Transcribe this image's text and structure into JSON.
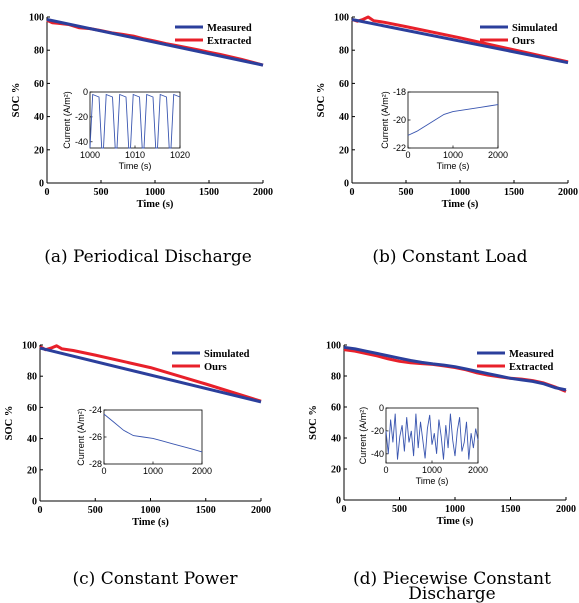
{
  "colors": {
    "blue": "#2b3f9c",
    "red": "#e8202a",
    "inset_line": "#3a56b0"
  },
  "chart_data": [
    {
      "type": "line",
      "caption": "(a) Periodical Discharge",
      "xlabel": "Time (s)",
      "ylabel": "SOC %",
      "xlim": [
        0,
        2000
      ],
      "ylim": [
        0,
        100
      ],
      "xticks": [
        0,
        500,
        1000,
        1500,
        2000
      ],
      "yticks": [
        0,
        20,
        40,
        60,
        80,
        100
      ],
      "legend_position": "top-right",
      "series": [
        {
          "name": "Measured",
          "color": "blue",
          "x": [
            0,
            2000
          ],
          "y": [
            98.5,
            71
          ]
        },
        {
          "name": "Extracted",
          "color": "red",
          "x": [
            0,
            50,
            100,
            200,
            300,
            400,
            500,
            600,
            700,
            800,
            900,
            1000,
            1100,
            1200,
            1300,
            1400,
            1500,
            1600,
            1700,
            1800,
            1900,
            2000
          ],
          "y": [
            98,
            96.5,
            96.2,
            95.5,
            93.5,
            93,
            91.8,
            90.5,
            89.5,
            88.5,
            86.8,
            85.5,
            84,
            82.8,
            81.5,
            80.2,
            78.8,
            77.5,
            76,
            74.5,
            72.8,
            71
          ]
        }
      ],
      "inset": {
        "xlabel": "Time (s)",
        "ylabel": "Current (A/m²)",
        "xlim": [
          1000,
          1020
        ],
        "ylim": [
          -45,
          0
        ],
        "xticks": [
          1000,
          1010,
          1020
        ],
        "yticks": [
          -40,
          -20,
          0
        ],
        "x": [
          1000,
          1000.6,
          1002,
          1002.6,
          1003,
          1003.6,
          1005,
          1005.6,
          1006,
          1006.6,
          1008,
          1008.6,
          1009,
          1009.6,
          1011,
          1011.6,
          1012,
          1012.6,
          1014,
          1014.6,
          1015,
          1015.6,
          1017,
          1017.6,
          1018,
          1018.6,
          1020
        ],
        "y": [
          -45,
          -2,
          -4,
          -45,
          -45,
          -2,
          -4,
          -45,
          -45,
          -2,
          -4,
          -45,
          -45,
          -2,
          -4,
          -45,
          -45,
          -2,
          -4,
          -45,
          -45,
          -2,
          -4,
          -45,
          -45,
          -2,
          -4
        ]
      }
    },
    {
      "type": "line",
      "caption": "(b) Constant Load",
      "xlabel": "Time (s)",
      "ylabel": "SOC %",
      "xlim": [
        0,
        2000
      ],
      "ylim": [
        0,
        100
      ],
      "xticks": [
        0,
        500,
        1000,
        1500,
        2000
      ],
      "yticks": [
        0,
        20,
        40,
        60,
        80,
        100
      ],
      "legend_position": "top-right",
      "series": [
        {
          "name": "Simulated",
          "color": "blue",
          "x": [
            0,
            2000
          ],
          "y": [
            98.5,
            72.5
          ]
        },
        {
          "name": "Ours",
          "color": "red",
          "x": [
            0,
            50,
            100,
            150,
            200,
            300,
            500,
            1000,
            1500,
            2000
          ],
          "y": [
            98.5,
            97.5,
            98.5,
            100,
            97.8,
            96.8,
            94.2,
            87.5,
            80.2,
            73
          ]
        }
      ],
      "inset": {
        "xlabel": "Time (s)",
        "ylabel": "Current (A/m²)",
        "xlim": [
          0,
          2000
        ],
        "ylim": [
          -22,
          -18
        ],
        "xticks": [
          0,
          1000,
          2000
        ],
        "yticks": [
          -22,
          -20,
          -18
        ],
        "x": [
          0,
          200,
          400,
          600,
          800,
          1000,
          1200,
          1400,
          1600,
          1800,
          2000
        ],
        "y": [
          -21.1,
          -20.8,
          -20.4,
          -20,
          -19.6,
          -19.4,
          -19.3,
          -19.2,
          -19.1,
          -19,
          -18.9
        ]
      }
    },
    {
      "type": "line",
      "caption": "(c) Constant Power",
      "xlabel": "Time (s)",
      "ylabel": "SOC %",
      "xlim": [
        0,
        2000
      ],
      "ylim": [
        0,
        100
      ],
      "xticks": [
        0,
        500,
        1000,
        1500,
        2000
      ],
      "yticks": [
        0,
        20,
        40,
        60,
        80,
        100
      ],
      "legend_position": "top-right",
      "series": [
        {
          "name": "Simulated",
          "color": "blue",
          "x": [
            0,
            2000
          ],
          "y": [
            98,
            63.5
          ]
        },
        {
          "name": "Ours",
          "color": "red",
          "x": [
            0,
            50,
            100,
            150,
            200,
            300,
            500,
            1000,
            1500,
            2000
          ],
          "y": [
            99,
            97,
            98,
            99.5,
            97.5,
            96.5,
            93.5,
            85.5,
            75,
            64
          ]
        }
      ],
      "inset": {
        "xlabel": "",
        "ylabel": "Current (A/m²)",
        "xlim": [
          0,
          2000
        ],
        "ylim": [
          -28,
          -24
        ],
        "xticks": [
          0,
          1000,
          2000
        ],
        "yticks": [
          -28,
          -26,
          -24
        ],
        "x": [
          0,
          200,
          400,
          600,
          800,
          1000,
          1200,
          1400,
          1600,
          1800,
          2000
        ],
        "y": [
          -24.3,
          -24.9,
          -25.5,
          -25.9,
          -26,
          -26.1,
          -26.3,
          -26.5,
          -26.7,
          -26.9,
          -27.1
        ]
      }
    },
    {
      "type": "line",
      "caption": "(d) Piecewise Constant Discharge",
      "caption_lines": [
        "(d) Piecewise Constant",
        "Discharge"
      ],
      "xlabel": "Time (s)",
      "ylabel": "SOC %",
      "xlim": [
        0,
        2000
      ],
      "ylim": [
        0,
        100
      ],
      "xticks": [
        0,
        500,
        1000,
        1500,
        2000
      ],
      "yticks": [
        0,
        20,
        40,
        60,
        80,
        100
      ],
      "legend_position": "top-right",
      "series": [
        {
          "name": "Measured",
          "color": "blue",
          "x": [
            0,
            100,
            200,
            300,
            400,
            500,
            600,
            700,
            800,
            900,
            1000,
            1100,
            1200,
            1300,
            1400,
            1500,
            1600,
            1700,
            1800,
            1900,
            2000
          ],
          "y": [
            98.5,
            97.5,
            96,
            94.5,
            93,
            91.5,
            90,
            88.8,
            87.8,
            87,
            86,
            84.5,
            83,
            81.5,
            80,
            78.5,
            77.5,
            76.5,
            75,
            72.5,
            71
          ]
        },
        {
          "name": "Extracted",
          "color": "red",
          "x": [
            0,
            100,
            200,
            300,
            400,
            500,
            600,
            700,
            800,
            900,
            1000,
            1100,
            1200,
            1300,
            1400,
            1500,
            1600,
            1700,
            1800,
            1900,
            2000
          ],
          "y": [
            97,
            96,
            94.5,
            93,
            91,
            89.5,
            88.5,
            88,
            87.5,
            86.5,
            85.5,
            84,
            82,
            80.5,
            79.5,
            78.5,
            78,
            77,
            75.5,
            73,
            70
          ]
        }
      ],
      "inset": {
        "xlabel": "Time (s)",
        "ylabel": "Current (A/m²)",
        "xlim": [
          0,
          2000
        ],
        "ylim": [
          -48,
          0
        ],
        "xticks": [
          0,
          1000,
          2000
        ],
        "yticks": [
          -40,
          -20,
          0
        ],
        "x": [
          0,
          50,
          100,
          150,
          200,
          250,
          300,
          350,
          400,
          450,
          500,
          550,
          600,
          650,
          700,
          750,
          800,
          850,
          900,
          950,
          1000,
          1050,
          1100,
          1150,
          1200,
          1250,
          1300,
          1350,
          1400,
          1450,
          1500,
          1550,
          1600,
          1650,
          1700,
          1750,
          1800,
          1850,
          1900,
          1950,
          2000
        ],
        "y": [
          -20,
          -40,
          -10,
          -30,
          -5,
          -45,
          -25,
          -15,
          -38,
          -8,
          -30,
          -20,
          -42,
          -5,
          -35,
          -12,
          -28,
          -44,
          -18,
          -6,
          -32,
          -22,
          -40,
          -10,
          -25,
          -45,
          -15,
          -35,
          -5,
          -28,
          -42,
          -20,
          -8,
          -38,
          -30,
          -12,
          -45,
          -22,
          -35,
          -18,
          -28
        ]
      }
    }
  ]
}
